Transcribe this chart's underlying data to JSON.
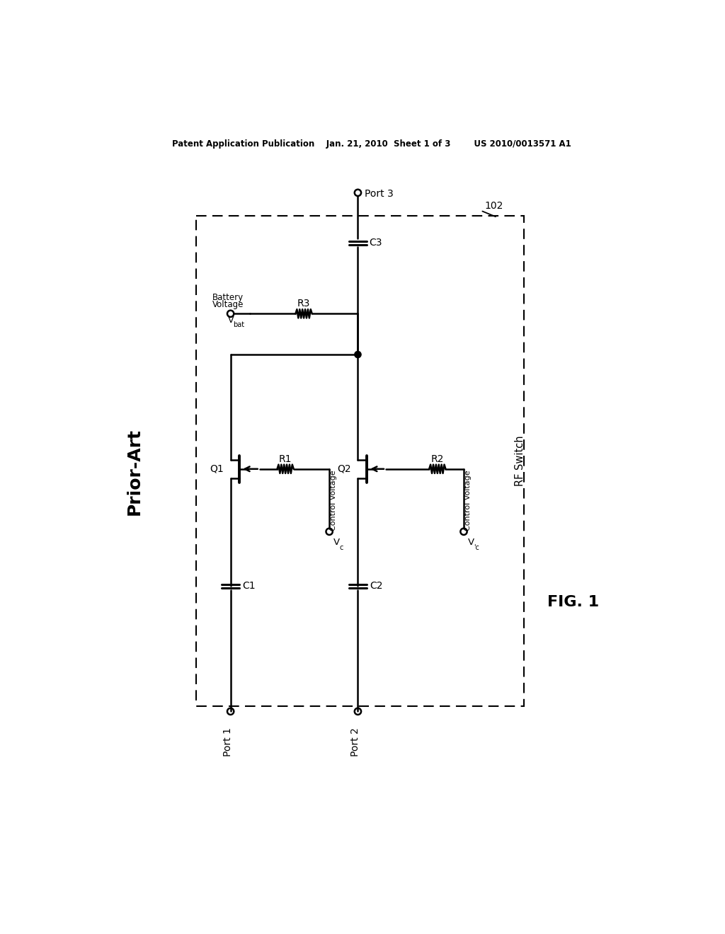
{
  "bg_color": "#ffffff",
  "header_text": "Patent Application Publication    Jan. 21, 2010  Sheet 1 of 3        US 2010/0013571 A1",
  "prior_art_label": "Prior-Art",
  "fig_label": "FIG. 1",
  "rf_switch_label": "RF Switch",
  "rf_switch_ref": "102",
  "port3_label": "Port 3",
  "port1_label": "Port 1",
  "port2_label": "Port 2",
  "battery_label1": "Battery",
  "battery_label2": "Voltage",
  "vbat": "V",
  "vbat_sub": "bat",
  "C3": "C3",
  "C1": "C1",
  "C2": "C2",
  "R3": "R3",
  "R1": "R1",
  "R2": "R2",
  "Q1": "Q1",
  "Q2": "Q2",
  "cv1_text": "Control Voltage",
  "vc1": "V",
  "vc1_sub": "c",
  "cv2_text": "Control Voltage",
  "vc2": "V",
  "vc2_sub": "c",
  "vc2_prime": "'"
}
